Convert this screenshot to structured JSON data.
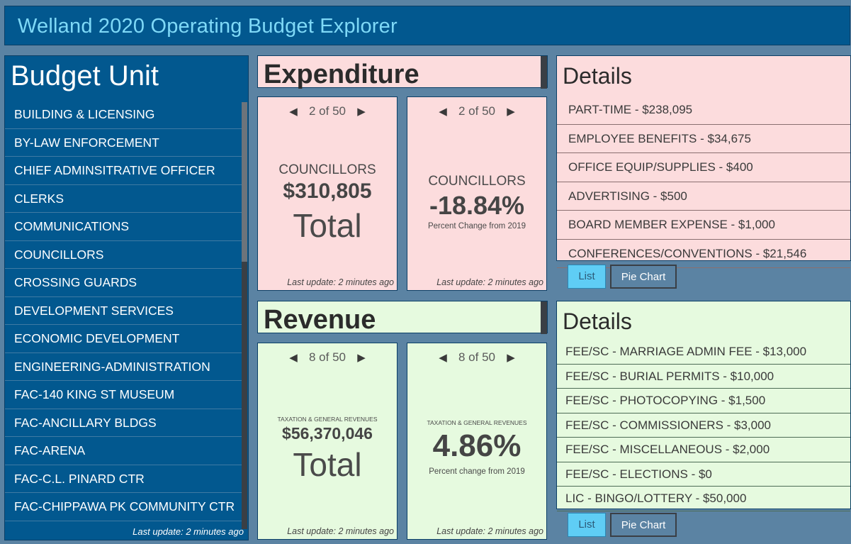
{
  "header": {
    "title": "Welland 2020 Operating Budget Explorer"
  },
  "budget_unit": {
    "title": "Budget Unit",
    "items": [
      "BUILDING & LICENSING",
      "BY-LAW ENFORCEMENT",
      "CHIEF ADMINSITRATIVE OFFICER",
      "CLERKS",
      "COMMUNICATIONS",
      "COUNCILLORS",
      "CROSSING GUARDS",
      "DEVELOPMENT SERVICES",
      "ECONOMIC DEVELOPMENT",
      "ENGINEERING-ADMINISTRATION",
      "FAC-140 KING ST MUSEUM",
      "FAC-ANCILLARY BLDGS",
      "FAC-ARENA",
      "FAC-C.L. PINARD CTR",
      "FAC-CHIPPAWA PK COMMUNITY CTR"
    ],
    "last_update": "Last update: 2 minutes ago"
  },
  "expenditure": {
    "title": "Expenditure",
    "total_card": {
      "pager": "2 of 50",
      "category": "COUNCILLORS",
      "value": "$310,805",
      "label": "Total",
      "last_update": "Last update: 2 minutes ago"
    },
    "change_card": {
      "pager": "2 of 50",
      "category": "COUNCILLORS",
      "value": "-18.84%",
      "caption": "Percent Change from 2019",
      "last_update": "Last update: 2 minutes ago"
    },
    "details": {
      "title": "Details",
      "items": [
        "PART-TIME - $238,095",
        "EMPLOYEE BENEFITS - $34,675",
        "OFFICE EQUIP/SUPPLIES - $400",
        "ADVERTISING - $500",
        "BOARD MEMBER EXPENSE - $1,000",
        "CONFERENCES/CONVENTIONS - $21,546"
      ],
      "list_button": "List",
      "pie_button": "Pie Chart"
    }
  },
  "revenue": {
    "title": "Revenue",
    "total_card": {
      "pager": "8 of 50",
      "category": "TAXATION & GENERAL REVENUES",
      "value": "$56,370,046",
      "label": "Total",
      "last_update": "Last update: 2 minutes ago"
    },
    "change_card": {
      "pager": "8 of 50",
      "category": "TAXATION & GENERAL REVENUES",
      "value": "4.86%",
      "caption": "Percent change from 2019",
      "last_update": "Last update: 2 minutes ago"
    },
    "details": {
      "title": "Details",
      "items": [
        "FEE/SC - MARRIAGE ADMIN FEE - $13,000",
        "FEE/SC - BURIAL PERMITS - $10,000",
        "FEE/SC - PHOTOCOPYING - $1,500",
        "FEE/SC - COMMISSIONERS - $3,000",
        "FEE/SC - MISCELLANEOUS - $2,000",
        "FEE/SC - ELECTIONS - $0",
        "LIC - BINGO/LOTTERY - $50,000"
      ],
      "list_button": "List",
      "pie_button": "Pie Chart"
    }
  },
  "icons": {
    "prev": "chevron-left-icon",
    "next": "chevron-right-icon"
  },
  "colors": {
    "background": "#5b83a3",
    "header": "#02588f",
    "title_text": "#7fd9f7",
    "expenditure_bg": "#fcdcdd",
    "revenue_bg": "#e6fadf",
    "list_button": "#5fcdf5"
  }
}
